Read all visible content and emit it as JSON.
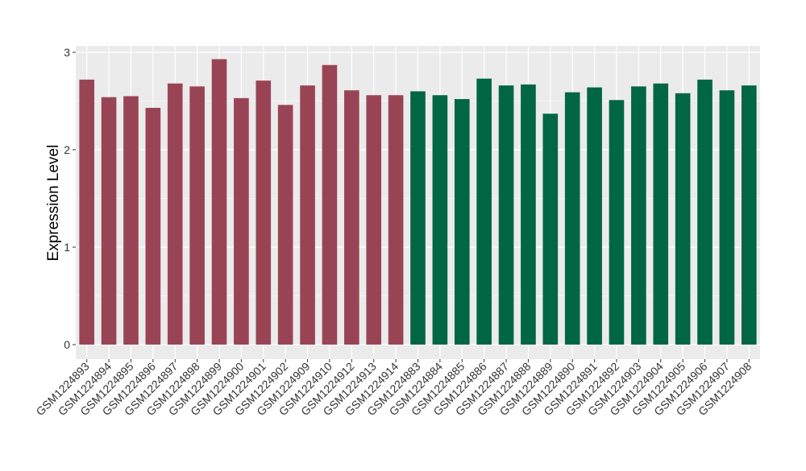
{
  "chart_data": {
    "type": "bar",
    "title": "",
    "xlabel": "",
    "ylabel": "Expression Level",
    "ylim": [
      0,
      3.1
    ],
    "yticks": [
      0,
      1,
      2,
      3
    ],
    "ytick_labels": [
      "0",
      "1",
      "2",
      "3"
    ],
    "grid": true,
    "legend": "none",
    "categories": [
      "GSM1224893",
      "GSM1224894",
      "GSM1224895",
      "GSM1224896",
      "GSM1224897",
      "GSM1224898",
      "GSM1224899",
      "GSM1224900",
      "GSM1224901",
      "GSM1224902",
      "GSM1224909",
      "GSM1224910",
      "GSM1224912",
      "GSM1224913",
      "GSM1224914",
      "GSM1224883",
      "GSM1224884",
      "GSM1224885",
      "GSM1224886",
      "GSM1224887",
      "GSM1224888",
      "GSM1224889",
      "GSM1224890",
      "GSM1224891",
      "GSM1224892",
      "GSM1224903",
      "GSM1224904",
      "GSM1224905",
      "GSM1224906",
      "GSM1224907",
      "GSM1224908"
    ],
    "values": [
      2.72,
      2.54,
      2.55,
      2.43,
      2.68,
      2.65,
      2.93,
      2.53,
      2.71,
      2.46,
      2.66,
      2.87,
      2.61,
      2.56,
      2.56,
      2.6,
      2.56,
      2.52,
      2.73,
      2.66,
      2.67,
      2.37,
      2.59,
      2.64,
      2.51,
      2.65,
      2.68,
      2.58,
      2.72,
      2.61,
      2.66
    ],
    "groups": [
      0,
      0,
      0,
      0,
      0,
      0,
      0,
      0,
      0,
      0,
      0,
      0,
      0,
      0,
      0,
      1,
      1,
      1,
      1,
      1,
      1,
      1,
      1,
      1,
      1,
      1,
      1,
      1,
      1,
      1,
      1
    ],
    "group_colors": [
      "#994455",
      "#006644"
    ],
    "panel_background": "#ebebeb",
    "grid_color": "#ffffff"
  }
}
